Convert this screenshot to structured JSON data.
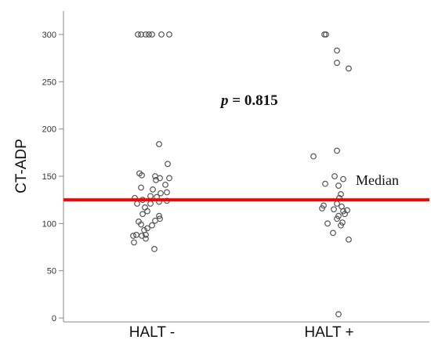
{
  "chart_data": {
    "type": "scatter",
    "ylabel": "CT-ADP",
    "xlabel": "",
    "categories": [
      "HALT -",
      "HALT +"
    ],
    "ylim": [
      0,
      310
    ],
    "yticks": [
      0,
      50,
      100,
      150,
      200,
      250,
      300
    ],
    "grid": false,
    "series": [
      {
        "category": "HALT -",
        "points": [
          {
            "offset": -0.18,
            "y": 300
          },
          {
            "offset": -0.14,
            "y": 300
          },
          {
            "offset": -0.08,
            "y": 300
          },
          {
            "offset": -0.04,
            "y": 300
          },
          {
            "offset": 0.0,
            "y": 300
          },
          {
            "offset": 0.12,
            "y": 300
          },
          {
            "offset": 0.22,
            "y": 300
          },
          {
            "offset": 0.09,
            "y": 184
          },
          {
            "offset": 0.2,
            "y": 163
          },
          {
            "offset": -0.16,
            "y": 153
          },
          {
            "offset": -0.13,
            "y": 151
          },
          {
            "offset": 0.04,
            "y": 150
          },
          {
            "offset": 0.1,
            "y": 148
          },
          {
            "offset": 0.22,
            "y": 148
          },
          {
            "offset": 0.05,
            "y": 146
          },
          {
            "offset": 0.17,
            "y": 141
          },
          {
            "offset": -0.14,
            "y": 138
          },
          {
            "offset": 0.01,
            "y": 136
          },
          {
            "offset": 0.19,
            "y": 133
          },
          {
            "offset": 0.11,
            "y": 132
          },
          {
            "offset": -0.02,
            "y": 129
          },
          {
            "offset": 0.06,
            "y": 128
          },
          {
            "offset": -0.22,
            "y": 127
          },
          {
            "offset": -0.12,
            "y": 125
          },
          {
            "offset": 0.19,
            "y": 124
          },
          {
            "offset": 0.09,
            "y": 123
          },
          {
            "offset": -0.19,
            "y": 121
          },
          {
            "offset": -0.02,
            "y": 121
          },
          {
            "offset": -0.09,
            "y": 117
          },
          {
            "offset": -0.06,
            "y": 113
          },
          {
            "offset": -0.12,
            "y": 110
          },
          {
            "offset": 0.09,
            "y": 108
          },
          {
            "offset": 0.1,
            "y": 105
          },
          {
            "offset": 0.04,
            "y": 103
          },
          {
            "offset": -0.17,
            "y": 102
          },
          {
            "offset": -0.14,
            "y": 99
          },
          {
            "offset": 0.0,
            "y": 98
          },
          {
            "offset": -0.06,
            "y": 95
          },
          {
            "offset": -0.1,
            "y": 93
          },
          {
            "offset": -0.2,
            "y": 88
          },
          {
            "offset": -0.13,
            "y": 87
          },
          {
            "offset": -0.08,
            "y": 88
          },
          {
            "offset": -0.24,
            "y": 87
          },
          {
            "offset": -0.08,
            "y": 84
          },
          {
            "offset": -0.23,
            "y": 80
          },
          {
            "offset": 0.03,
            "y": 73
          }
        ]
      },
      {
        "category": "HALT +",
        "points": [
          {
            "offset": -0.06,
            "y": 300
          },
          {
            "offset": -0.04,
            "y": 300
          },
          {
            "offset": 0.1,
            "y": 283
          },
          {
            "offset": 0.1,
            "y": 270
          },
          {
            "offset": 0.25,
            "y": 264
          },
          {
            "offset": 0.1,
            "y": 177
          },
          {
            "offset": -0.2,
            "y": 171
          },
          {
            "offset": 0.07,
            "y": 150
          },
          {
            "offset": 0.18,
            "y": 147
          },
          {
            "offset": -0.05,
            "y": 142
          },
          {
            "offset": 0.12,
            "y": 140
          },
          {
            "offset": 0.15,
            "y": 131
          },
          {
            "offset": 0.13,
            "y": 127
          },
          {
            "offset": 0.1,
            "y": 121
          },
          {
            "offset": -0.07,
            "y": 119
          },
          {
            "offset": 0.16,
            "y": 118
          },
          {
            "offset": -0.09,
            "y": 116
          },
          {
            "offset": 0.06,
            "y": 115
          },
          {
            "offset": 0.18,
            "y": 113
          },
          {
            "offset": 0.23,
            "y": 114
          },
          {
            "offset": 0.2,
            "y": 110
          },
          {
            "offset": 0.12,
            "y": 108
          },
          {
            "offset": 0.1,
            "y": 105
          },
          {
            "offset": 0.17,
            "y": 101
          },
          {
            "offset": 0.15,
            "y": 98
          },
          {
            "offset": -0.02,
            "y": 100
          },
          {
            "offset": 0.05,
            "y": 90
          },
          {
            "offset": 0.25,
            "y": 83
          },
          {
            "offset": 0.12,
            "y": 4
          }
        ]
      }
    ],
    "median": {
      "value": 125,
      "label": "Median",
      "color": "#ff0000"
    },
    "annotation": {
      "p_symbol": "p",
      "text": " = 0.815"
    },
    "marker": {
      "shape": "open-circle",
      "color": "#555555"
    }
  }
}
